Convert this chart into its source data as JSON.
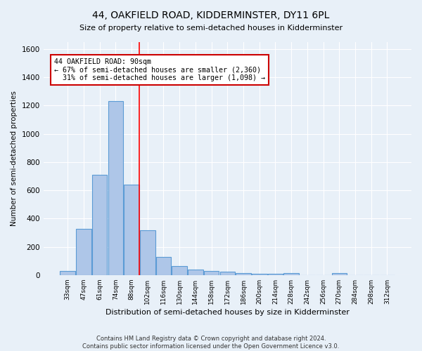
{
  "title": "44, OAKFIELD ROAD, KIDDERMINSTER, DY11 6PL",
  "subtitle": "Size of property relative to semi-detached houses in Kidderminster",
  "xlabel": "Distribution of semi-detached houses by size in Kidderminster",
  "ylabel": "Number of semi-detached properties",
  "footer": "Contains HM Land Registry data © Crown copyright and database right 2024.\nContains public sector information licensed under the Open Government Licence v3.0.",
  "bar_labels": [
    "33sqm",
    "47sqm",
    "61sqm",
    "74sqm",
    "88sqm",
    "102sqm",
    "116sqm",
    "130sqm",
    "144sqm",
    "158sqm",
    "172sqm",
    "186sqm",
    "200sqm",
    "214sqm",
    "228sqm",
    "242sqm",
    "256sqm",
    "270sqm",
    "284sqm",
    "298sqm",
    "312sqm"
  ],
  "bar_values": [
    28,
    325,
    710,
    1230,
    640,
    315,
    130,
    65,
    40,
    28,
    22,
    15,
    10,
    8,
    15,
    0,
    0,
    12,
    0,
    0,
    0
  ],
  "bar_color": "#aec6e8",
  "bar_edge_color": "#5b9bd5",
  "annotation_line1": "44 OAKFIELD ROAD: 90sqm",
  "annotation_line2": "← 67% of semi-detached houses are smaller (2,360)",
  "annotation_line3": "  31% of semi-detached houses are larger (1,098) →",
  "annotation_box_color": "#ffffff",
  "annotation_box_edge": "#cc0000",
  "red_line_bin_index": 4,
  "ylim": [
    0,
    1650
  ],
  "yticks": [
    0,
    200,
    400,
    600,
    800,
    1000,
    1200,
    1400,
    1600
  ],
  "bg_color": "#e8f0f8",
  "plot_bg_color": "#e8f0f8",
  "grid_color": "#ffffff"
}
